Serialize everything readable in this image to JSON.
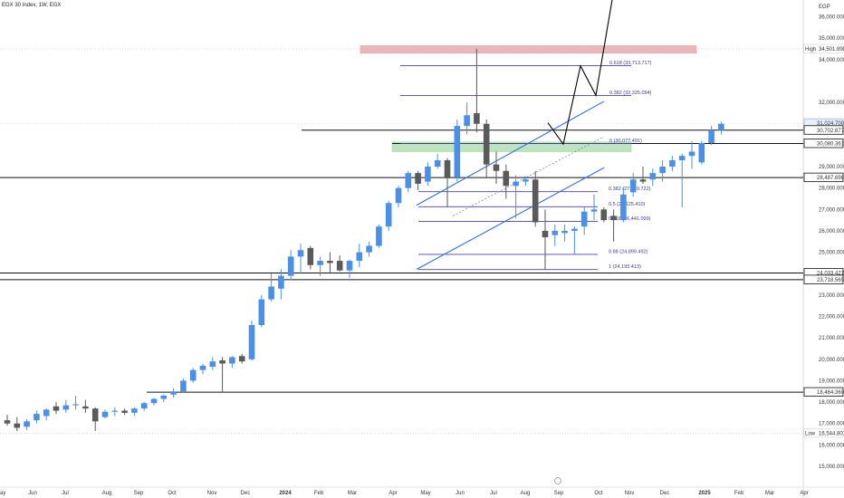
{
  "chart_title": "EGX 30 Index, 1W, EGX",
  "currency": "EGP",
  "chart_data": {
    "type": "candlestick",
    "title": "EGX 30 Index, 1W, EGX",
    "y_axis": {
      "ticks": [
        "15,000.000",
        "16,000.000",
        "17,000.000",
        "18,000.000",
        "19,000.000",
        "20,000.000",
        "21,000.000",
        "22,000.000",
        "23,000.000",
        "24,000.000",
        "25,000.000",
        "26,000.000",
        "27,000.000",
        "28,000.000",
        "29,000.000",
        "32,000.000",
        "34,000.000",
        "35,000.000",
        "36,000.000"
      ],
      "tick_values": [
        15000,
        16000,
        17000,
        18000,
        19000,
        20000,
        21000,
        22000,
        23000,
        24000,
        25000,
        26000,
        27000,
        28000,
        29000,
        32000,
        34000,
        35000,
        36000
      ],
      "ylim": [
        15000,
        36500
      ]
    },
    "x_axis": {
      "labels": [
        "Jun",
        "Jul",
        "Aug",
        "Sep",
        "Oct",
        "Nov",
        "Dec",
        "2024",
        "Feb",
        "Mar",
        "Apr",
        "May",
        "Jun",
        "Jul",
        "Aug",
        "Sep",
        "Oct",
        "Nov",
        "Dec",
        "2025",
        "Feb",
        "Mar",
        "Apr"
      ]
    },
    "price_labels": [
      {
        "text": "High",
        "value": "34,501.898",
        "y": 34501.898
      },
      {
        "text": "",
        "value": "31,024.700",
        "y": 31024.7
      },
      {
        "text": "",
        "value": "30,702.677",
        "y": 30702.677
      },
      {
        "text": "",
        "value": "30,080.361",
        "y": 30080.361
      },
      {
        "text": "",
        "value": "28,487.698",
        "y": 28487.698
      },
      {
        "text": "",
        "value": "24,033.427",
        "y": 24033.427
      },
      {
        "text": "",
        "value": "23,718.565",
        "y": 23718.565
      },
      {
        "text": "",
        "value": "18,464.360",
        "y": 18464.36
      },
      {
        "text": "Low",
        "value": "16,544.801",
        "y": 16544.801
      }
    ],
    "fib_levels": [
      {
        "label": "0.618 (33,713.717)",
        "y": 33713.717
      },
      {
        "label": "0.382 (32,325.094)",
        "y": 32325.094
      },
      {
        "label": "0 (30,077.491)",
        "y": 30077.491
      },
      {
        "label": "0.382 (27,829.722)",
        "y": 27829.722
      },
      {
        "label": "0.5 (27,125.410)",
        "y": 27125.41
      },
      {
        "label": "0.618 (26,441.099)",
        "y": 26441.099
      },
      {
        "label": "0.88 (24,899.492)",
        "y": 24899.492
      },
      {
        "label": "1 (24,193.413)",
        "y": 24193.413
      }
    ],
    "horizontal_levels": [
      30702.677,
      30080.361,
      28487.698,
      24033.427,
      23718.565,
      18464.36
    ],
    "zones": [
      {
        "name": "supply",
        "y1": 34300,
        "y2": 34650,
        "color": "#e6a0a4"
      },
      {
        "name": "demand",
        "y1": 29700,
        "y2": 30150,
        "color": "#a8dba8"
      }
    ],
    "candles": [
      {
        "o": 17150,
        "h": 17400,
        "l": 16900,
        "c": 17000
      },
      {
        "o": 17000,
        "h": 17300,
        "l": 16650,
        "c": 16800
      },
      {
        "o": 16850,
        "h": 17200,
        "l": 16700,
        "c": 17100
      },
      {
        "o": 17150,
        "h": 17600,
        "l": 17000,
        "c": 17450
      },
      {
        "o": 17350,
        "h": 17700,
        "l": 17150,
        "c": 17650
      },
      {
        "o": 17800,
        "h": 18000,
        "l": 17450,
        "c": 17600
      },
      {
        "o": 17650,
        "h": 18100,
        "l": 17500,
        "c": 17850
      },
      {
        "o": 17850,
        "h": 18300,
        "l": 17650,
        "c": 17900
      },
      {
        "o": 17800,
        "h": 18100,
        "l": 17500,
        "c": 17700
      },
      {
        "o": 17700,
        "h": 17750,
        "l": 16650,
        "c": 17100
      },
      {
        "o": 17300,
        "h": 17650,
        "l": 17250,
        "c": 17550
      },
      {
        "o": 17550,
        "h": 17750,
        "l": 17350,
        "c": 17600
      },
      {
        "o": 17600,
        "h": 17700,
        "l": 17400,
        "c": 17500
      },
      {
        "o": 17500,
        "h": 17750,
        "l": 17350,
        "c": 17700
      },
      {
        "o": 17700,
        "h": 18000,
        "l": 17600,
        "c": 17950
      },
      {
        "o": 17950,
        "h": 18200,
        "l": 17850,
        "c": 18150
      },
      {
        "o": 18150,
        "h": 18350,
        "l": 18000,
        "c": 18300
      },
      {
        "o": 18350,
        "h": 18650,
        "l": 18200,
        "c": 18500
      },
      {
        "o": 18500,
        "h": 19100,
        "l": 18450,
        "c": 19000
      },
      {
        "o": 19000,
        "h": 19600,
        "l": 18900,
        "c": 19500
      },
      {
        "o": 19500,
        "h": 19800,
        "l": 19300,
        "c": 19700
      },
      {
        "o": 19650,
        "h": 20100,
        "l": 19500,
        "c": 19900
      },
      {
        "o": 19950,
        "h": 20100,
        "l": 18450,
        "c": 19800
      },
      {
        "o": 19800,
        "h": 20150,
        "l": 19600,
        "c": 20100
      },
      {
        "o": 20150,
        "h": 20250,
        "l": 19800,
        "c": 19900
      },
      {
        "o": 20000,
        "h": 21800,
        "l": 19950,
        "c": 21600
      },
      {
        "o": 21600,
        "h": 23000,
        "l": 21500,
        "c": 22800
      },
      {
        "o": 22800,
        "h": 24000,
        "l": 22700,
        "c": 23400
      },
      {
        "o": 23300,
        "h": 24200,
        "l": 22800,
        "c": 23900
      },
      {
        "o": 23900,
        "h": 25100,
        "l": 23700,
        "c": 24800
      },
      {
        "o": 24800,
        "h": 25400,
        "l": 24000,
        "c": 25100
      },
      {
        "o": 25200,
        "h": 25300,
        "l": 24200,
        "c": 24400
      },
      {
        "o": 24400,
        "h": 24800,
        "l": 23900,
        "c": 24600
      },
      {
        "o": 24600,
        "h": 25000,
        "l": 24000,
        "c": 24500
      },
      {
        "o": 24600,
        "h": 24850,
        "l": 24100,
        "c": 24150
      },
      {
        "o": 24150,
        "h": 24650,
        "l": 23800,
        "c": 24600
      },
      {
        "o": 24600,
        "h": 25400,
        "l": 24300,
        "c": 25000
      },
      {
        "o": 25000,
        "h": 25500,
        "l": 24800,
        "c": 25300
      },
      {
        "o": 25300,
        "h": 26300,
        "l": 25200,
        "c": 26200
      },
      {
        "o": 26200,
        "h": 27400,
        "l": 26000,
        "c": 27300
      },
      {
        "o": 27300,
        "h": 28100,
        "l": 27100,
        "c": 28000
      },
      {
        "o": 28000,
        "h": 28800,
        "l": 27800,
        "c": 28700
      },
      {
        "o": 28700,
        "h": 28800,
        "l": 27900,
        "c": 28200
      },
      {
        "o": 28300,
        "h": 29200,
        "l": 28100,
        "c": 29000
      },
      {
        "o": 29000,
        "h": 29600,
        "l": 28900,
        "c": 29300
      },
      {
        "o": 29300,
        "h": 29400,
        "l": 27100,
        "c": 28500
      },
      {
        "o": 28500,
        "h": 31200,
        "l": 28300,
        "c": 30900
      },
      {
        "o": 30900,
        "h": 32000,
        "l": 30500,
        "c": 31400
      },
      {
        "o": 31500,
        "h": 34500,
        "l": 30600,
        "c": 31000
      },
      {
        "o": 31000,
        "h": 31200,
        "l": 28500,
        "c": 29100
      },
      {
        "o": 29100,
        "h": 29700,
        "l": 28200,
        "c": 28800
      },
      {
        "o": 28800,
        "h": 29100,
        "l": 27500,
        "c": 28100
      },
      {
        "o": 28100,
        "h": 28600,
        "l": 26600,
        "c": 28300
      },
      {
        "o": 28300,
        "h": 28550,
        "l": 28100,
        "c": 28400
      },
      {
        "o": 28400,
        "h": 28800,
        "l": 26200,
        "c": 26400
      },
      {
        "o": 26000,
        "h": 27000,
        "l": 24200,
        "c": 25700
      },
      {
        "o": 25800,
        "h": 26300,
        "l": 25300,
        "c": 26000
      },
      {
        "o": 25900,
        "h": 26300,
        "l": 25500,
        "c": 26000
      },
      {
        "o": 26000,
        "h": 26200,
        "l": 24900,
        "c": 26100
      },
      {
        "o": 26200,
        "h": 27100,
        "l": 25800,
        "c": 26900
      },
      {
        "o": 26900,
        "h": 27700,
        "l": 26500,
        "c": 27000
      },
      {
        "o": 27000,
        "h": 27100,
        "l": 26400,
        "c": 26500
      },
      {
        "o": 26700,
        "h": 27000,
        "l": 25500,
        "c": 26500
      },
      {
        "o": 26500,
        "h": 28000,
        "l": 26400,
        "c": 27700
      },
      {
        "o": 27800,
        "h": 28700,
        "l": 27600,
        "c": 28400
      },
      {
        "o": 28400,
        "h": 29000,
        "l": 28200,
        "c": 28300
      },
      {
        "o": 28400,
        "h": 28900,
        "l": 28100,
        "c": 28700
      },
      {
        "o": 28700,
        "h": 29300,
        "l": 28300,
        "c": 29000
      },
      {
        "o": 29000,
        "h": 29500,
        "l": 28800,
        "c": 29300
      },
      {
        "o": 29300,
        "h": 29600,
        "l": 27100,
        "c": 29500
      },
      {
        "o": 29500,
        "h": 30200,
        "l": 28900,
        "c": 29700
      },
      {
        "o": 29200,
        "h": 30200,
        "l": 29100,
        "c": 30100
      },
      {
        "o": 30100,
        "h": 30900,
        "l": 30000,
        "c": 30700
      },
      {
        "o": 30700,
        "h": 31100,
        "l": 30500,
        "c": 31000
      }
    ],
    "ascending_channel": {
      "upper": [
        [
          46,
          27200
        ],
        [
          85,
          32100
        ]
      ],
      "lower": [
        [
          46,
          24200
        ],
        [
          85,
          29000
        ]
      ],
      "middle": [
        [
          46,
          26500
        ],
        [
          85,
          30400
        ]
      ]
    },
    "projection_path": [
      [
        78,
        31000
      ],
      [
        79.5,
        30100
      ],
      [
        84,
        33700
      ],
      [
        85.5,
        32300
      ],
      [
        89,
        36500
      ]
    ],
    "grid": false,
    "legend": "none"
  }
}
